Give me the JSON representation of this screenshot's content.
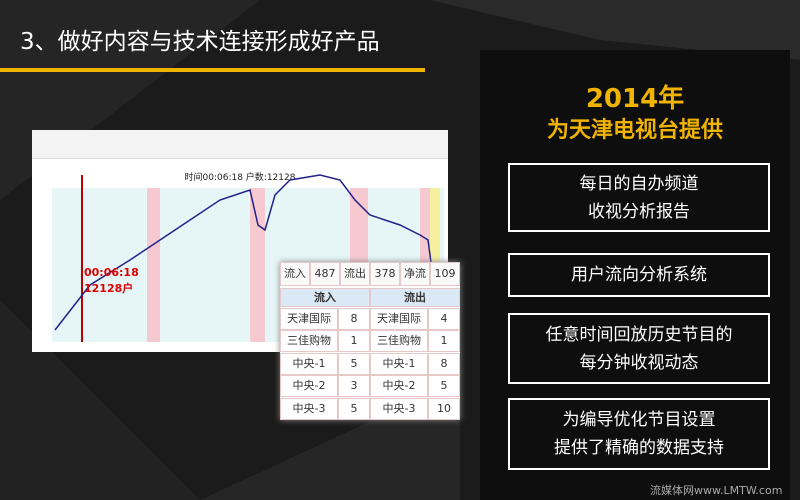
{
  "header": {
    "title": "3、做好内容与技术连接形成好产品"
  },
  "panel": {
    "year": "2014年",
    "subtitle": "为天津电视台提供",
    "items": [
      [
        "每日的自办频道",
        "收视分析报告"
      ],
      [
        "用户流向分析系统"
      ],
      [
        "任意时间回放历史节目的",
        "每分钟收视动态"
      ],
      [
        "为编导优化节目设置",
        "提供了精确的数据支持"
      ]
    ]
  },
  "screenshot": {
    "status": "时间00:06:18 户数:12128",
    "marker": [
      "00:06:18",
      "12128户"
    ],
    "summary": [
      "流入",
      487,
      "流出",
      378,
      "净流入",
      109
    ],
    "table": {
      "headers": [
        "流入",
        "流出"
      ],
      "rows": [
        [
          "天津国际",
          8,
          "天津国际",
          4
        ],
        [
          "三佳购物",
          1,
          "三佳购物",
          1
        ],
        [
          "中央-1",
          5,
          "中央-1",
          8
        ],
        [
          "中央-2",
          3,
          "中央-2",
          5
        ],
        [
          "中央-3",
          5,
          "中央-3",
          10
        ]
      ]
    }
  },
  "watermark": "流媒体网www.LMTW.com"
}
